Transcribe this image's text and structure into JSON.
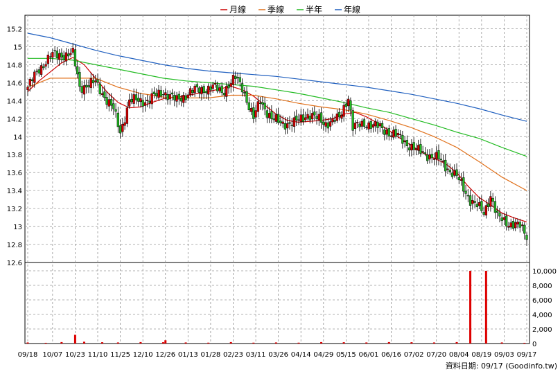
{
  "chart_data": {
    "type": "candlestick",
    "legend": [
      {
        "name": "月線",
        "color": "#cc0000"
      },
      {
        "name": "季線",
        "color": "#e0701a"
      },
      {
        "name": "半年",
        "color": "#22bb22"
      },
      {
        "name": "年線",
        "color": "#1f5fbf"
      }
    ],
    "price_axis": {
      "ticks": [
        12.6,
        12.8,
        13,
        13.2,
        13.4,
        13.6,
        13.8,
        14,
        14.2,
        14.4,
        14.6,
        14.8,
        15,
        15.2
      ],
      "labels": [
        "12.6",
        "12.8",
        "13",
        "13.2",
        "13.4",
        "13.6",
        "13.8",
        "14",
        "14.2",
        "14.4",
        "14.6",
        "14.8",
        "15",
        "15.2"
      ],
      "ylim": [
        12.6,
        15.35
      ]
    },
    "volume_axis": {
      "ticks": [
        0,
        2000,
        4000,
        6000,
        8000,
        10000
      ],
      "labels": [
        "0",
        "2,000",
        "4,000",
        "6,000",
        "8,000",
        "10,000"
      ],
      "ylim": [
        0,
        10000
      ]
    },
    "x_tick_labels": [
      "09/18",
      "10/07",
      "10/23",
      "11/10",
      "11/25",
      "12/10",
      "12/26",
      "01/13",
      "01/28",
      "02/23",
      "03/11",
      "03/26",
      "04/14",
      "04/29",
      "05/15",
      "06/01",
      "06/16",
      "07/02",
      "07/20",
      "08/04",
      "08/19",
      "09/03",
      "09/17"
    ],
    "x_tick_index": [
      0,
      11,
      21,
      31,
      41,
      51,
      61,
      71,
      81,
      91,
      101,
      111,
      121,
      131,
      141,
      151,
      161,
      171,
      181,
      191,
      201,
      211,
      221
    ],
    "bars_count": 222,
    "price_keypoints": [
      [
        0,
        14.55
      ],
      [
        5,
        14.75
      ],
      [
        10,
        14.9
      ],
      [
        20,
        14.92
      ],
      [
        23,
        14.55
      ],
      [
        30,
        14.6
      ],
      [
        38,
        14.3
      ],
      [
        41,
        14.05
      ],
      [
        45,
        14.4
      ],
      [
        53,
        14.4
      ],
      [
        60,
        14.5
      ],
      [
        66,
        14.4
      ],
      [
        72,
        14.5
      ],
      [
        82,
        14.55
      ],
      [
        86,
        14.5
      ],
      [
        92,
        14.65
      ],
      [
        95,
        14.55
      ],
      [
        100,
        14.2
      ],
      [
        103,
        14.4
      ],
      [
        108,
        14.2
      ],
      [
        112,
        14.15
      ],
      [
        118,
        14.15
      ],
      [
        124,
        14.25
      ],
      [
        132,
        14.15
      ],
      [
        138,
        14.2
      ],
      [
        142,
        14.45
      ],
      [
        144,
        14.1
      ],
      [
        150,
        14.15
      ],
      [
        156,
        14.1
      ],
      [
        164,
        14.0
      ],
      [
        172,
        13.85
      ],
      [
        182,
        13.75
      ],
      [
        190,
        13.55
      ],
      [
        196,
        13.3
      ],
      [
        202,
        13.15
      ],
      [
        205,
        13.35
      ],
      [
        208,
        13.1
      ],
      [
        212,
        13.05
      ],
      [
        218,
        13.0
      ],
      [
        221,
        12.9
      ]
    ],
    "ma_month": [
      [
        0,
        14.5
      ],
      [
        5,
        14.62
      ],
      [
        10,
        14.72
      ],
      [
        15,
        14.82
      ],
      [
        20,
        14.88
      ],
      [
        25,
        14.8
      ],
      [
        30,
        14.65
      ],
      [
        35,
        14.5
      ],
      [
        40,
        14.38
      ],
      [
        45,
        14.32
      ],
      [
        50,
        14.33
      ],
      [
        55,
        14.38
      ],
      [
        60,
        14.42
      ],
      [
        65,
        14.44
      ],
      [
        70,
        14.45
      ],
      [
        75,
        14.48
      ],
      [
        80,
        14.5
      ],
      [
        85,
        14.53
      ],
      [
        90,
        14.56
      ],
      [
        95,
        14.52
      ],
      [
        100,
        14.45
      ],
      [
        105,
        14.35
      ],
      [
        110,
        14.25
      ],
      [
        115,
        14.18
      ],
      [
        120,
        14.16
      ],
      [
        125,
        14.17
      ],
      [
        130,
        14.18
      ],
      [
        135,
        14.2
      ],
      [
        140,
        14.25
      ],
      [
        145,
        14.27
      ],
      [
        150,
        14.22
      ],
      [
        155,
        14.15
      ],
      [
        160,
        14.07
      ],
      [
        165,
        13.98
      ],
      [
        170,
        13.9
      ],
      [
        175,
        13.82
      ],
      [
        180,
        13.76
      ],
      [
        185,
        13.7
      ],
      [
        190,
        13.6
      ],
      [
        195,
        13.45
      ],
      [
        200,
        13.32
      ],
      [
        205,
        13.24
      ],
      [
        210,
        13.15
      ],
      [
        215,
        13.1
      ],
      [
        221,
        13.05
      ]
    ],
    "ma_season": [
      [
        0,
        14.55
      ],
      [
        10,
        14.65
      ],
      [
        20,
        14.65
      ],
      [
        30,
        14.65
      ],
      [
        40,
        14.55
      ],
      [
        50,
        14.48
      ],
      [
        60,
        14.44
      ],
      [
        70,
        14.43
      ],
      [
        80,
        14.43
      ],
      [
        90,
        14.46
      ],
      [
        100,
        14.46
      ],
      [
        110,
        14.42
      ],
      [
        120,
        14.37
      ],
      [
        130,
        14.33
      ],
      [
        140,
        14.3
      ],
      [
        150,
        14.25
      ],
      [
        160,
        14.18
      ],
      [
        170,
        14.1
      ],
      [
        180,
        14.0
      ],
      [
        190,
        13.88
      ],
      [
        200,
        13.72
      ],
      [
        210,
        13.55
      ],
      [
        221,
        13.4
      ]
    ],
    "ma_half": [
      [
        0,
        14.87
      ],
      [
        10,
        14.87
      ],
      [
        20,
        14.85
      ],
      [
        30,
        14.8
      ],
      [
        40,
        14.75
      ],
      [
        50,
        14.7
      ],
      [
        60,
        14.65
      ],
      [
        70,
        14.62
      ],
      [
        80,
        14.6
      ],
      [
        90,
        14.58
      ],
      [
        100,
        14.56
      ],
      [
        110,
        14.52
      ],
      [
        120,
        14.48
      ],
      [
        130,
        14.43
      ],
      [
        140,
        14.38
      ],
      [
        150,
        14.32
      ],
      [
        160,
        14.27
      ],
      [
        170,
        14.2
      ],
      [
        180,
        14.13
      ],
      [
        190,
        14.05
      ],
      [
        200,
        13.98
      ],
      [
        210,
        13.88
      ],
      [
        221,
        13.78
      ]
    ],
    "ma_year": [
      [
        0,
        15.15
      ],
      [
        10,
        15.1
      ],
      [
        20,
        15.03
      ],
      [
        30,
        14.96
      ],
      [
        40,
        14.9
      ],
      [
        50,
        14.85
      ],
      [
        60,
        14.8
      ],
      [
        70,
        14.76
      ],
      [
        80,
        14.73
      ],
      [
        90,
        14.71
      ],
      [
        100,
        14.69
      ],
      [
        110,
        14.67
      ],
      [
        120,
        14.64
      ],
      [
        130,
        14.61
      ],
      [
        140,
        14.58
      ],
      [
        150,
        14.55
      ],
      [
        160,
        14.51
      ],
      [
        170,
        14.47
      ],
      [
        180,
        14.42
      ],
      [
        190,
        14.37
      ],
      [
        200,
        14.31
      ],
      [
        210,
        14.24
      ],
      [
        221,
        14.17
      ]
    ],
    "volume_spikes": [
      [
        0,
        150
      ],
      [
        8,
        100
      ],
      [
        15,
        200
      ],
      [
        21,
        1200
      ],
      [
        25,
        250
      ],
      [
        33,
        180
      ],
      [
        40,
        150
      ],
      [
        50,
        200
      ],
      [
        60,
        180
      ],
      [
        61,
        450
      ],
      [
        70,
        150
      ],
      [
        80,
        120
      ],
      [
        90,
        200
      ],
      [
        100,
        120
      ],
      [
        110,
        150
      ],
      [
        120,
        120
      ],
      [
        130,
        200
      ],
      [
        140,
        180
      ],
      [
        150,
        150
      ],
      [
        160,
        200
      ],
      [
        170,
        180
      ],
      [
        180,
        150
      ],
      [
        190,
        200
      ],
      [
        196,
        10000
      ],
      [
        203,
        10000
      ],
      [
        210,
        150
      ],
      [
        220,
        100
      ]
    ]
  },
  "footer": {
    "source": "資料日期: 09/17  (Goodinfo.tw)"
  }
}
